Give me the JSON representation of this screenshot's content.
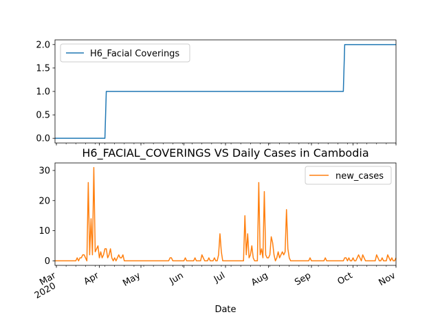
{
  "chart_data": [
    {
      "type": "line",
      "title": "",
      "xlabel": "",
      "ylabel": "",
      "x_range": [
        "2020-02-29",
        "2020-11-01"
      ],
      "ylim": [
        -0.1,
        2.1
      ],
      "yticks": [
        "0.0",
        "0.5",
        "1.0",
        "1.5",
        "2.0"
      ],
      "grid": false,
      "legend_position": "upper left",
      "series": [
        {
          "name": "H6_Facial Coverings",
          "color": "#1f77b4",
          "points": [
            [
              "2020-02-29",
              0
            ],
            [
              "2020-04-05",
              0
            ],
            [
              "2020-04-06",
              1
            ],
            [
              "2020-09-24",
              1
            ],
            [
              "2020-09-25",
              2
            ],
            [
              "2020-11-01",
              2
            ]
          ]
        }
      ]
    },
    {
      "type": "line",
      "title": "H6_FACIAL_COVERINGS VS Daily Cases in Cambodia",
      "xlabel": "Date",
      "ylabel": "",
      "x_range": [
        "2020-02-29",
        "2020-11-01"
      ],
      "ylim": [
        -1.5,
        32.5
      ],
      "yticks": [
        "0",
        "10",
        "20",
        "30"
      ],
      "xticks": [
        {
          "date": "2020-03-01",
          "label": "Mar",
          "sublabel": "2020"
        },
        {
          "date": "2020-04-01",
          "label": "Apr"
        },
        {
          "date": "2020-05-01",
          "label": "May"
        },
        {
          "date": "2020-06-01",
          "label": "Jun"
        },
        {
          "date": "2020-07-01",
          "label": "Jul"
        },
        {
          "date": "2020-08-01",
          "label": "Aug"
        },
        {
          "date": "2020-09-01",
          "label": "Sep"
        },
        {
          "date": "2020-10-01",
          "label": "Oct"
        },
        {
          "date": "2020-11-01",
          "label": "Nov"
        }
      ],
      "grid": false,
      "legend_position": "upper right",
      "series": [
        {
          "name": "new_cases",
          "color": "#ff7f0e",
          "nonzero": {
            "2020-03-16": 1,
            "2020-03-18": 1,
            "2020-03-19": 1,
            "2020-03-20": 2,
            "2020-03-21": 2,
            "2020-03-22": 1,
            "2020-03-24": 26,
            "2020-03-25": 2,
            "2020-03-26": 14,
            "2020-03-27": 2,
            "2020-03-28": 31,
            "2020-03-29": 3,
            "2020-03-30": 4,
            "2020-03-31": 5,
            "2020-04-01": 1,
            "2020-04-02": 3,
            "2020-04-03": 1,
            "2020-04-04": 2,
            "2020-04-05": 4,
            "2020-04-06": 4,
            "2020-04-07": 1,
            "2020-04-08": 2,
            "2020-04-09": 4,
            "2020-04-10": 1,
            "2020-04-12": 1,
            "2020-04-14": 1,
            "2020-04-15": 2,
            "2020-04-16": 1,
            "2020-04-17": 1,
            "2020-04-18": 2,
            "2020-05-22": 1,
            "2020-05-23": 1,
            "2020-06-02": 1,
            "2020-06-09": 1,
            "2020-06-14": 2,
            "2020-06-15": 1,
            "2020-06-19": 1,
            "2020-06-23": 1,
            "2020-06-26": 2,
            "2020-06-27": 9,
            "2020-06-28": 3,
            "2020-07-15": 15,
            "2020-07-16": 2,
            "2020-07-17": 9,
            "2020-07-18": 1,
            "2020-07-19": 2,
            "2020-07-20": 5,
            "2020-07-21": 1,
            "2020-07-25": 26,
            "2020-07-26": 2,
            "2020-07-27": 4,
            "2020-07-28": 1,
            "2020-07-29": 23,
            "2020-07-30": 2,
            "2020-07-31": 1,
            "2020-08-01": 1,
            "2020-08-02": 2,
            "2020-08-03": 8,
            "2020-08-04": 6,
            "2020-08-05": 2,
            "2020-08-07": 1,
            "2020-08-08": 3,
            "2020-08-09": 1,
            "2020-08-10": 2,
            "2020-08-11": 3,
            "2020-08-12": 2,
            "2020-08-13": 3,
            "2020-08-14": 17,
            "2020-08-15": 4,
            "2020-08-16": 1,
            "2020-08-31": 1,
            "2020-09-11": 1,
            "2020-09-25": 1,
            "2020-09-26": 1,
            "2020-09-28": 1,
            "2020-10-01": 1,
            "2020-10-04": 1,
            "2020-10-05": 2,
            "2020-10-06": 1,
            "2020-10-08": 2,
            "2020-10-09": 1,
            "2020-10-18": 2,
            "2020-10-19": 1,
            "2020-10-22": 1,
            "2020-10-26": 2,
            "2020-10-27": 1,
            "2020-10-29": 1,
            "2020-11-01": 1
          }
        }
      ]
    }
  ]
}
